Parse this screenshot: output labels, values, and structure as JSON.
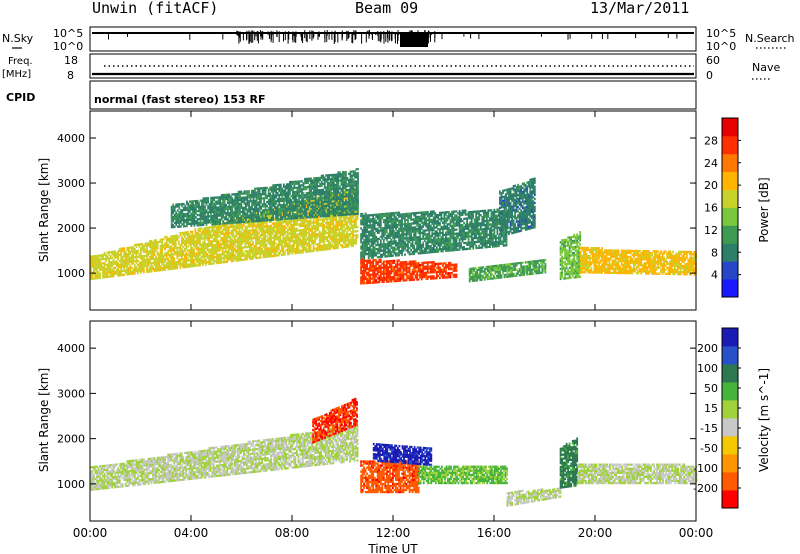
{
  "header": {
    "radar_title": "Unwin (fitACF)",
    "beam_label": "Beam 09",
    "date_label": "13/Mar/2011"
  },
  "noise_panel": {
    "left_label": "N.Sky",
    "right_label": "N.Search",
    "left_ticks": [
      "10^5",
      "10^0"
    ],
    "right_ticks": [
      "10^5",
      "10^0"
    ]
  },
  "freq_panel": {
    "left_label_top": "Freq.",
    "left_label_unit": "[MHz]",
    "right_label": "Nave",
    "left_ticks": [
      "18",
      "8"
    ],
    "right_ticks": [
      "60",
      "0"
    ]
  },
  "cpid_panel": {
    "label": "CPID",
    "mode_text": "normal (fast stereo) 153 RF"
  },
  "colors": {
    "power_scale": [
      "#1a1aff",
      "#2846c8",
      "#2e7f6a",
      "#3f9a55",
      "#7ac83c",
      "#c8d22a",
      "#ffb400",
      "#ff7800",
      "#ff3000",
      "#e60000"
    ],
    "velocity_scale": [
      "#ff0000",
      "#ff5a00",
      "#ff9600",
      "#f5c800",
      "#c8c8c8",
      "#a0d23c",
      "#46b43c",
      "#2d7850",
      "#2850c8",
      "#1a1ab4"
    ]
  },
  "chart_data": [
    {
      "type": "heatmap",
      "name": "power",
      "ylabel": "Slant Range [km]",
      "xlabel": "Time UT",
      "x_ticks": [
        "00:00",
        "04:00",
        "08:00",
        "12:00",
        "16:00",
        "20:00",
        "00:00"
      ],
      "xlim_hours": [
        0,
        24
      ],
      "y_ticks": [
        1000,
        2000,
        3000,
        4000
      ],
      "ylim": [
        180,
        4600
      ],
      "colorbar_label": "Power [dB]",
      "colorbar_ticks": [
        4,
        8,
        12,
        16,
        20,
        24,
        28
      ],
      "colorbar_range": [
        0,
        32
      ],
      "echo_regions": [
        {
          "t0": 0.0,
          "t1": 10.6,
          "r0_start": 850,
          "r1_start": 1350,
          "r0_end": 1600,
          "r1_end": 2900,
          "value": 18
        },
        {
          "t0": 3.2,
          "t1": 10.6,
          "r0_start": 2000,
          "r1_start": 2500,
          "r0_end": 2300,
          "r1_end": 3300,
          "value": 9
        },
        {
          "t0": 10.7,
          "t1": 14.5,
          "r0_start": 750,
          "r1_start": 1300,
          "r0_end": 900,
          "r1_end": 1200,
          "value": 27
        },
        {
          "t0": 10.7,
          "t1": 16.5,
          "r0_start": 1300,
          "r1_start": 2300,
          "r0_end": 1600,
          "r1_end": 2400,
          "value": 9
        },
        {
          "t0": 15.0,
          "t1": 18.0,
          "r0_start": 800,
          "r1_start": 1100,
          "r0_end": 1000,
          "r1_end": 1300,
          "value": 12
        },
        {
          "t0": 16.2,
          "t1": 17.6,
          "r0_start": 1800,
          "r1_start": 2800,
          "r0_end": 2000,
          "r1_end": 3100,
          "value": 8
        },
        {
          "t0": 18.6,
          "t1": 19.4,
          "r0_start": 850,
          "r1_start": 1700,
          "r0_end": 900,
          "r1_end": 1900,
          "value": 14
        },
        {
          "t0": 19.4,
          "t1": 24.0,
          "r0_start": 1000,
          "r1_start": 1550,
          "r0_end": 950,
          "r1_end": 1450,
          "value": 20
        }
      ]
    },
    {
      "type": "heatmap",
      "name": "velocity",
      "ylabel": "Slant Range [km]",
      "xlabel": "Time UT",
      "x_ticks": [
        "00:00",
        "04:00",
        "08:00",
        "12:00",
        "16:00",
        "20:00",
        "00:00"
      ],
      "xlim_hours": [
        0,
        24
      ],
      "y_ticks": [
        1000,
        2000,
        3000,
        4000
      ],
      "ylim": [
        180,
        4600
      ],
      "colorbar_label": "Velocity [m s^-1]",
      "colorbar_ticks": [
        "200",
        "100",
        "50",
        "15",
        "-15",
        "-50",
        "-100",
        "-200"
      ],
      "colorbar_range": [
        -250,
        250
      ],
      "echo_regions": [
        {
          "t0": 0.0,
          "t1": 10.6,
          "r0_start": 850,
          "r1_start": 1350,
          "r0_end": 1500,
          "r1_end": 2300,
          "value": 0
        },
        {
          "t0": 8.8,
          "t1": 10.6,
          "r0_start": 1900,
          "r1_start": 2400,
          "r0_end": 2300,
          "r1_end": 2900,
          "value": -200
        },
        {
          "t0": 10.7,
          "t1": 13.0,
          "r0_start": 800,
          "r1_start": 1500,
          "r0_end": 800,
          "r1_end": 1500,
          "value": -180
        },
        {
          "t0": 11.2,
          "t1": 13.5,
          "r0_start": 1500,
          "r1_start": 1900,
          "r0_end": 1400,
          "r1_end": 1800,
          "value": 220
        },
        {
          "t0": 13.0,
          "t1": 16.5,
          "r0_start": 1000,
          "r1_start": 1400,
          "r0_end": 1000,
          "r1_end": 1400,
          "value": 60
        },
        {
          "t0": 16.5,
          "t1": 18.6,
          "r0_start": 500,
          "r1_start": 800,
          "r0_end": 700,
          "r1_end": 900,
          "value": 0
        },
        {
          "t0": 18.6,
          "t1": 19.3,
          "r0_start": 900,
          "r1_start": 1800,
          "r0_end": 950,
          "r1_end": 2000,
          "value": 120
        },
        {
          "t0": 19.3,
          "t1": 24.0,
          "r0_start": 1000,
          "r1_start": 1450,
          "r0_end": 1000,
          "r1_end": 1400,
          "value": 0
        }
      ]
    }
  ]
}
